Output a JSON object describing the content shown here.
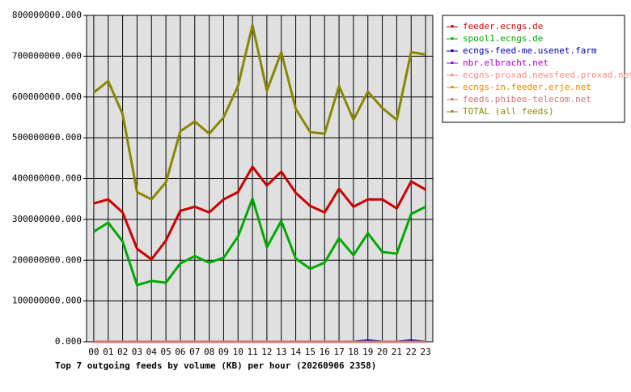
{
  "chart_data": {
    "type": "line",
    "title": "Top 7 outgoing feeds by volume (KB) per hour (20260906 2358)",
    "categories": [
      "00",
      "01",
      "02",
      "03",
      "04",
      "05",
      "06",
      "07",
      "08",
      "09",
      "10",
      "11",
      "12",
      "13",
      "14",
      "15",
      "16",
      "17",
      "18",
      "19",
      "20",
      "21",
      "22",
      "23"
    ],
    "ylim": [
      0,
      800000000
    ],
    "yticks": [
      {
        "value": 0,
        "label": "0.000"
      },
      {
        "value": 100000000,
        "label": "100000000.000"
      },
      {
        "value": 200000000,
        "label": "200000000.000"
      },
      {
        "value": 300000000,
        "label": "300000000.000"
      },
      {
        "value": 400000000,
        "label": "400000000.000"
      },
      {
        "value": 500000000,
        "label": "500000000.000"
      },
      {
        "value": 600000000,
        "label": "600000000.000"
      },
      {
        "value": 700000000,
        "label": "700000000.000"
      },
      {
        "value": 800000000,
        "label": "800000000.000"
      }
    ],
    "grid": true,
    "series": [
      {
        "name": "feeder.ecngs.de",
        "color": "#cc0000",
        "values": [
          339000000,
          349000000,
          317000000,
          228000000,
          202000000,
          248000000,
          321000000,
          331000000,
          317000000,
          349000000,
          367000000,
          429000000,
          383000000,
          417000000,
          365000000,
          333000000,
          317000000,
          375000000,
          331000000,
          349000000,
          349000000,
          327000000,
          393000000,
          373000000
        ]
      },
      {
        "name": "spool1.ecngs.de",
        "color": "#00aa00",
        "values": [
          270000000,
          292000000,
          246000000,
          139000000,
          149000000,
          145000000,
          192000000,
          210000000,
          194000000,
          206000000,
          258000000,
          351000000,
          232000000,
          296000000,
          204000000,
          179000000,
          194000000,
          254000000,
          212000000,
          266000000,
          220000000,
          216000000,
          313000000,
          331000000
        ]
      },
      {
        "name": "ecngs-feed-me.usenet.farm",
        "color": "#0000aa",
        "values": [
          0,
          0,
          0,
          0,
          0,
          0,
          0,
          0,
          0,
          0,
          0,
          0,
          0,
          0,
          0,
          0,
          0,
          0,
          0,
          3000000,
          0,
          0,
          3000000,
          0
        ]
      },
      {
        "name": "nbr.elbracht.net",
        "color": "#aa00cc",
        "values": [
          0,
          0,
          0,
          0,
          0,
          0,
          0,
          0,
          0,
          0,
          0,
          0,
          0,
          0,
          0,
          0,
          0,
          0,
          0,
          0,
          0,
          0,
          0,
          0
        ]
      },
      {
        "name": "ecgns-proxad.newsfeed.proxad.net",
        "color": "#ff8888",
        "values": [
          0,
          0,
          0,
          0,
          0,
          0,
          0,
          0,
          0,
          0,
          0,
          0,
          0,
          0,
          0,
          0,
          0,
          0,
          0,
          0,
          0,
          0,
          0,
          0
        ]
      },
      {
        "name": "ecngs-in.feeder.erje.net",
        "color": "#ee8800",
        "values": [
          0,
          0,
          0,
          0,
          0,
          0,
          0,
          0,
          0,
          0,
          0,
          0,
          0,
          0,
          0,
          0,
          0,
          0,
          0,
          0,
          0,
          0,
          0,
          0
        ]
      },
      {
        "name": "feeds.phibee-telecom.net",
        "color": "#cc7777",
        "values": [
          0,
          0,
          0,
          0,
          0,
          0,
          0,
          0,
          0,
          0,
          0,
          0,
          0,
          0,
          0,
          0,
          0,
          0,
          0,
          0,
          0,
          0,
          0,
          0
        ]
      },
      {
        "name": "TOTAL (all feeds)",
        "color": "#888800",
        "values": [
          611000000,
          639000000,
          558000000,
          367000000,
          349000000,
          391000000,
          516000000,
          540000000,
          510000000,
          550000000,
          627000000,
          776000000,
          615000000,
          710000000,
          571000000,
          514000000,
          510000000,
          627000000,
          544000000,
          613000000,
          573000000,
          544000000,
          710000000,
          704000000
        ]
      }
    ]
  }
}
